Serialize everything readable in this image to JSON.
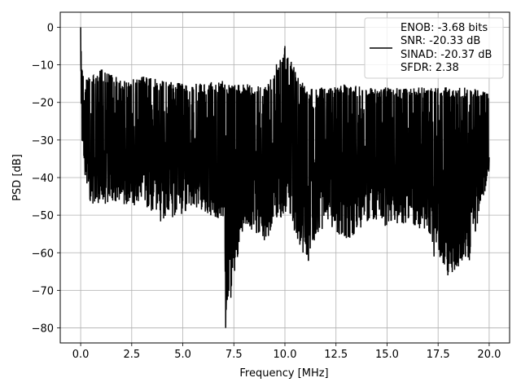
{
  "chart_data": {
    "type": "line",
    "title": "",
    "xlabel": "Frequency [MHz]",
    "ylabel": "PSD [dB]",
    "xlim": [
      -1.0,
      21.0
    ],
    "ylim": [
      -84.0,
      4.0
    ],
    "x_ticks": [
      {
        "value": 0.0,
        "label": "0.0"
      },
      {
        "value": 2.5,
        "label": "2.5"
      },
      {
        "value": 5.0,
        "label": "5.0"
      },
      {
        "value": 7.5,
        "label": "7.5"
      },
      {
        "value": 10.0,
        "label": "10.0"
      },
      {
        "value": 12.5,
        "label": "12.5"
      },
      {
        "value": 15.0,
        "label": "15.0"
      },
      {
        "value": 17.5,
        "label": "17.5"
      },
      {
        "value": 20.0,
        "label": "20.0"
      }
    ],
    "y_ticks": [
      {
        "value": 0,
        "label": "0"
      },
      {
        "value": -10,
        "label": "−10"
      },
      {
        "value": -20,
        "label": "−20"
      },
      {
        "value": -30,
        "label": "−30"
      },
      {
        "value": -40,
        "label": "−40"
      },
      {
        "value": -50,
        "label": "−50"
      },
      {
        "value": -60,
        "label": "−60"
      },
      {
        "value": -70,
        "label": "−70"
      },
      {
        "value": -80,
        "label": "−80"
      }
    ],
    "grid": true,
    "legend": {
      "position": "upper right",
      "entries": [
        "ENOB: -3.68 bits",
        "SNR: -20.33 dB",
        "SINAD: -20.37 dB",
        "SFDR: 2.38"
      ]
    },
    "colors": {
      "line": "#000000",
      "grid": "#b0b0b0"
    },
    "series": [
      {
        "values_summary": "noise-like PSD spanning 0-20 MHz; approx. envelope listed below",
        "x": [
          0.0,
          0.05,
          0.1,
          0.2,
          0.5,
          1.0,
          2.0,
          3.0,
          4.0,
          5.0,
          6.0,
          7.0,
          7.1,
          8.0,
          9.0,
          10.0,
          11.0,
          12.0,
          13.0,
          14.0,
          15.0,
          16.0,
          17.0,
          18.0,
          19.0,
          20.0
        ],
        "upper": [
          0.0,
          -8,
          -12,
          -12,
          -13,
          -11,
          -14,
          -13,
          -14,
          -15,
          -15,
          -14,
          -15,
          -15,
          -16,
          -5,
          -16,
          -16,
          -15,
          -16,
          -16,
          -16,
          -16,
          -16,
          -16,
          -17
        ],
        "lower": [
          -5,
          -33,
          -32,
          -40,
          -47,
          -47,
          -47,
          -48,
          -52,
          -50,
          -49,
          -52,
          -80,
          -52,
          -57,
          -50,
          -62,
          -52,
          -57,
          -52,
          -53,
          -52,
          -55,
          -66,
          -62,
          -39
        ]
      }
    ]
  }
}
